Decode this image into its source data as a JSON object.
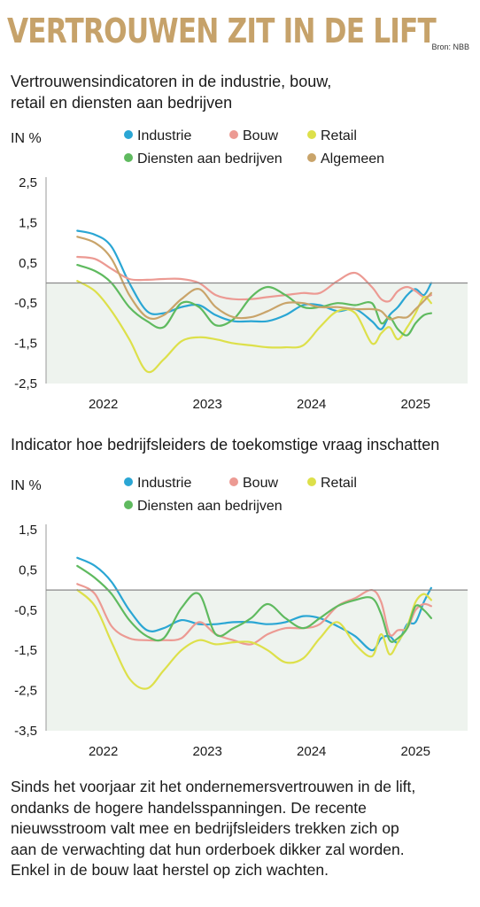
{
  "header": {
    "title": "VERTROUWEN ZIT IN DE LIFT",
    "source": "Bron: NBB"
  },
  "colors": {
    "title_gold": "#c6a26a",
    "plot_background": "#eef3ee",
    "industrie": "#2aa6d4",
    "bouw": "#ec9a93",
    "retail": "#dde04a",
    "diensten": "#5fba5f",
    "algemeen": "#c9a46a"
  },
  "chart_data": [
    {
      "type": "line",
      "title": "Vertrouwensindicatoren in de industrie, bouw, retail en diensten aan bedrijven",
      "ylabel": "IN %",
      "ylim": [
        -2.5,
        2.5
      ],
      "yticks": [
        2.5,
        1.5,
        0.5,
        -0.5,
        -1.5,
        -2.5
      ],
      "ytick_labels": [
        "2,5",
        "1,5",
        "0,5",
        "-0,5",
        "-1,5",
        "-2,5"
      ],
      "xlim": [
        2021.45,
        2025.5
      ],
      "xticks": [
        2022,
        2023,
        2024,
        2025
      ],
      "xtick_labels": [
        "2022",
        "2023",
        "2024",
        "2025"
      ],
      "grid": false,
      "legend_position": "top",
      "series": [
        {
          "name": "Industrie",
          "color_key": "industrie",
          "x": [
            2021.75,
            2021.92,
            2022.08,
            2022.25,
            2022.42,
            2022.58,
            2022.75,
            2022.92,
            2023.08,
            2023.25,
            2023.42,
            2023.58,
            2023.75,
            2023.92,
            2024.08,
            2024.25,
            2024.42,
            2024.58,
            2024.67,
            2024.75,
            2024.83,
            2024.92,
            2025.0,
            2025.08,
            2025.15
          ],
          "y": [
            1.3,
            1.2,
            0.9,
            0.0,
            -0.7,
            -0.75,
            -0.6,
            -0.55,
            -0.8,
            -0.95,
            -0.95,
            -0.95,
            -0.8,
            -0.55,
            -0.55,
            -0.7,
            -0.65,
            -0.95,
            -1.15,
            -0.8,
            -0.6,
            -0.3,
            -0.15,
            -0.3,
            0.0
          ]
        },
        {
          "name": "Bouw",
          "color_key": "bouw",
          "x": [
            2021.75,
            2021.92,
            2022.08,
            2022.25,
            2022.42,
            2022.58,
            2022.75,
            2022.92,
            2023.08,
            2023.25,
            2023.42,
            2023.58,
            2023.75,
            2023.92,
            2024.08,
            2024.25,
            2024.42,
            2024.58,
            2024.67,
            2024.75,
            2024.83,
            2024.92,
            2025.0,
            2025.08,
            2025.15
          ],
          "y": [
            0.65,
            0.6,
            0.35,
            0.1,
            0.08,
            0.1,
            0.1,
            0.0,
            -0.3,
            -0.4,
            -0.4,
            -0.35,
            -0.3,
            -0.25,
            -0.25,
            0.05,
            0.25,
            -0.1,
            -0.4,
            -0.45,
            -0.2,
            -0.1,
            -0.2,
            -0.35,
            -0.3
          ]
        },
        {
          "name": "Retail",
          "color_key": "retail",
          "x": [
            2021.75,
            2021.92,
            2022.08,
            2022.25,
            2022.42,
            2022.58,
            2022.75,
            2022.92,
            2023.08,
            2023.25,
            2023.42,
            2023.58,
            2023.75,
            2023.92,
            2024.08,
            2024.25,
            2024.42,
            2024.58,
            2024.67,
            2024.75,
            2024.83,
            2024.92,
            2025.0,
            2025.08,
            2025.15
          ],
          "y": [
            0.05,
            -0.2,
            -0.7,
            -1.4,
            -2.2,
            -1.9,
            -1.45,
            -1.35,
            -1.4,
            -1.5,
            -1.55,
            -1.6,
            -1.6,
            -1.55,
            -1.1,
            -0.7,
            -0.75,
            -1.5,
            -1.25,
            -1.1,
            -1.4,
            -1.1,
            -0.75,
            -0.35,
            -0.5
          ]
        },
        {
          "name": "Diensten aan bedrijven",
          "color_key": "diensten",
          "x": [
            2021.75,
            2021.92,
            2022.08,
            2022.25,
            2022.42,
            2022.58,
            2022.75,
            2022.92,
            2023.08,
            2023.25,
            2023.42,
            2023.58,
            2023.75,
            2023.92,
            2024.08,
            2024.25,
            2024.42,
            2024.58,
            2024.67,
            2024.75,
            2024.83,
            2024.92,
            2025.0,
            2025.08,
            2025.15
          ],
          "y": [
            0.45,
            0.3,
            0.0,
            -0.6,
            -0.95,
            -1.1,
            -0.5,
            -0.6,
            -1.05,
            -0.9,
            -0.35,
            -0.1,
            -0.3,
            -0.6,
            -0.6,
            -0.5,
            -0.55,
            -0.5,
            -1.0,
            -0.85,
            -1.15,
            -1.3,
            -1.0,
            -0.8,
            -0.75
          ]
        },
        {
          "name": "Algemeen",
          "color_key": "algemeen",
          "x": [
            2021.75,
            2021.92,
            2022.08,
            2022.25,
            2022.42,
            2022.58,
            2022.75,
            2022.92,
            2023.08,
            2023.25,
            2023.42,
            2023.58,
            2023.75,
            2023.92,
            2024.08,
            2024.25,
            2024.42,
            2024.58,
            2024.67,
            2024.75,
            2024.83,
            2024.92,
            2025.0,
            2025.08,
            2025.15
          ],
          "y": [
            1.15,
            1.0,
            0.6,
            -0.3,
            -0.85,
            -0.8,
            -0.4,
            -0.15,
            -0.6,
            -0.85,
            -0.85,
            -0.7,
            -0.5,
            -0.5,
            -0.6,
            -0.6,
            -0.65,
            -0.65,
            -0.7,
            -0.9,
            -0.85,
            -0.85,
            -0.65,
            -0.45,
            -0.25
          ]
        }
      ]
    },
    {
      "type": "line",
      "title": "Indicator hoe bedrijfsleiders de toekomstige vraag inschatten",
      "ylabel": "IN %",
      "ylim": [
        -3.5,
        1.5
      ],
      "yticks": [
        1.5,
        0.5,
        -0.5,
        -1.5,
        -2.5,
        -3.5
      ],
      "ytick_labels": [
        "1,5",
        "0,5",
        "-0,5",
        "-1,5",
        "-2,5",
        "-3,5"
      ],
      "xlim": [
        2021.45,
        2025.5
      ],
      "xticks": [
        2022,
        2023,
        2024,
        2025
      ],
      "xtick_labels": [
        "2022",
        "2023",
        "2024",
        "2025"
      ],
      "grid": false,
      "legend_position": "top",
      "series": [
        {
          "name": "Industrie",
          "color_key": "industrie",
          "x": [
            2021.75,
            2021.92,
            2022.08,
            2022.25,
            2022.42,
            2022.58,
            2022.75,
            2022.92,
            2023.08,
            2023.25,
            2023.42,
            2023.58,
            2023.75,
            2023.92,
            2024.08,
            2024.25,
            2024.42,
            2024.58,
            2024.67,
            2024.75,
            2024.83,
            2024.92,
            2025.0,
            2025.08,
            2025.15
          ],
          "y": [
            0.8,
            0.6,
            0.2,
            -0.5,
            -1.0,
            -0.95,
            -0.75,
            -0.85,
            -0.85,
            -0.8,
            -0.8,
            -0.85,
            -0.8,
            -0.65,
            -0.7,
            -0.9,
            -1.15,
            -1.5,
            -1.2,
            -1.15,
            -1.3,
            -0.85,
            -0.8,
            -0.3,
            0.05
          ]
        },
        {
          "name": "Bouw",
          "color_key": "bouw",
          "x": [
            2021.75,
            2021.92,
            2022.08,
            2022.25,
            2022.42,
            2022.58,
            2022.75,
            2022.92,
            2023.08,
            2023.25,
            2023.42,
            2023.58,
            2023.75,
            2023.92,
            2024.08,
            2024.25,
            2024.42,
            2024.58,
            2024.67,
            2024.75,
            2024.83,
            2024.92,
            2025.0,
            2025.08,
            2025.15
          ],
          "y": [
            0.15,
            -0.1,
            -0.9,
            -1.2,
            -1.25,
            -1.25,
            -1.2,
            -0.8,
            -1.1,
            -1.25,
            -1.35,
            -1.1,
            -0.95,
            -0.95,
            -0.85,
            -0.4,
            -0.2,
            0.0,
            -0.3,
            -1.1,
            -1.0,
            -0.95,
            -0.5,
            -0.35,
            -0.4
          ]
        },
        {
          "name": "Retail",
          "color_key": "retail",
          "x": [
            2021.75,
            2021.92,
            2022.08,
            2022.25,
            2022.42,
            2022.58,
            2022.75,
            2022.92,
            2023.08,
            2023.25,
            2023.42,
            2023.58,
            2023.75,
            2023.92,
            2024.08,
            2024.25,
            2024.42,
            2024.58,
            2024.67,
            2024.75,
            2024.83,
            2024.92,
            2025.0,
            2025.08,
            2025.15
          ],
          "y": [
            0.0,
            -0.4,
            -1.3,
            -2.2,
            -2.45,
            -2.0,
            -1.5,
            -1.25,
            -1.35,
            -1.3,
            -1.3,
            -1.5,
            -1.8,
            -1.7,
            -1.2,
            -0.8,
            -1.35,
            -1.65,
            -1.1,
            -1.6,
            -1.3,
            -0.9,
            -0.3,
            -0.1,
            -0.25
          ]
        },
        {
          "name": "Diensten aan bedrijven",
          "color_key": "diensten",
          "x": [
            2021.75,
            2021.92,
            2022.08,
            2022.25,
            2022.42,
            2022.58,
            2022.75,
            2022.92,
            2023.08,
            2023.25,
            2023.42,
            2023.58,
            2023.75,
            2023.92,
            2024.08,
            2024.25,
            2024.42,
            2024.58,
            2024.67,
            2024.75,
            2024.83,
            2024.92,
            2025.0,
            2025.08,
            2025.15
          ],
          "y": [
            0.6,
            0.3,
            -0.1,
            -0.75,
            -1.15,
            -1.2,
            -0.45,
            -0.1,
            -1.1,
            -0.95,
            -0.7,
            -0.35,
            -0.7,
            -0.95,
            -0.7,
            -0.4,
            -0.25,
            -0.2,
            -0.6,
            -1.25,
            -1.2,
            -0.95,
            -0.4,
            -0.5,
            -0.7
          ]
        }
      ]
    }
  ],
  "chart1": {
    "subtitle_line1": "Vertrouwensindicatoren in de industrie, bouw,",
    "subtitle_line2": "retail en diensten aan bedrijven",
    "unit": "IN %",
    "legend": [
      "Industrie",
      "Bouw",
      "Retail",
      "Diensten aan bedrijven",
      "Algemeen"
    ]
  },
  "chart2": {
    "subtitle": "Indicator hoe bedrijfsleiders de toekomstige vraag inschatten",
    "unit": "IN %",
    "legend": [
      "Industrie",
      "Bouw",
      "Retail",
      "Diensten aan bedrijven"
    ]
  },
  "caption": {
    "line1": "Sinds het voorjaar zit het ondernemersvertrouwen in de lift,",
    "line2": "ondanks de hogere handelsspanningen. De recente",
    "line3": "nieuwsstroom valt mee en bedrijfsleiders trekken zich op",
    "line4": "aan de verwachting dat hun orderboek dikker zal worden.",
    "line5": "Enkel in de bouw laat herstel op zich wachten."
  }
}
